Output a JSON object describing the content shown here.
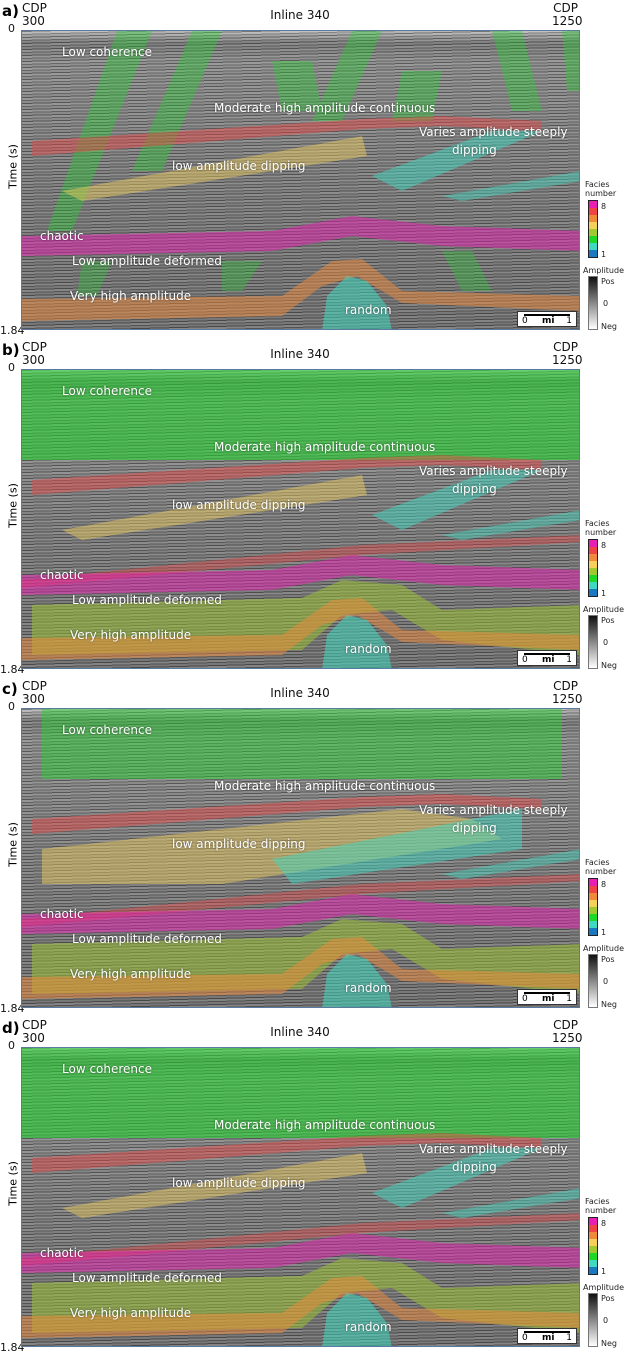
{
  "figure": {
    "cdp_label": "CDP",
    "cdp_start": "300",
    "cdp_end": "1250",
    "title": "Inline 340",
    "y_axis_label": "Time (s)",
    "y_top": "0",
    "y_bottom": "1.84",
    "scale_bar": {
      "start": "0",
      "unit": "mi",
      "end": "1"
    },
    "legend": {
      "facies_title": "Facies number",
      "facies_max": "8",
      "facies_min": "1",
      "facies_colors": [
        "#1a78c0",
        "#40d8c0",
        "#1ed828",
        "#a0c830",
        "#f5d05a",
        "#f08a3a",
        "#ee4444",
        "#e91eb4"
      ],
      "amplitude_title": "Amplitude",
      "amp_pos": "Pos",
      "amp_zero": "0",
      "amp_neg": "Neg"
    },
    "facies_labels": {
      "low_coherence": "Low coherence",
      "moderate": "Moderate high amplitude continuous",
      "varies_1": "Varies amplitude steeply",
      "varies_2": "dipping",
      "low_dipping": "low amplitude dipping",
      "chaotic": "chaotic",
      "low_deformed": "Low amplitude deformed",
      "very_high": "Very high amplitude",
      "random": "random"
    },
    "panels": [
      {
        "label": "a)"
      },
      {
        "label": "b)"
      },
      {
        "label": "c)"
      },
      {
        "label": "d)"
      }
    ]
  }
}
